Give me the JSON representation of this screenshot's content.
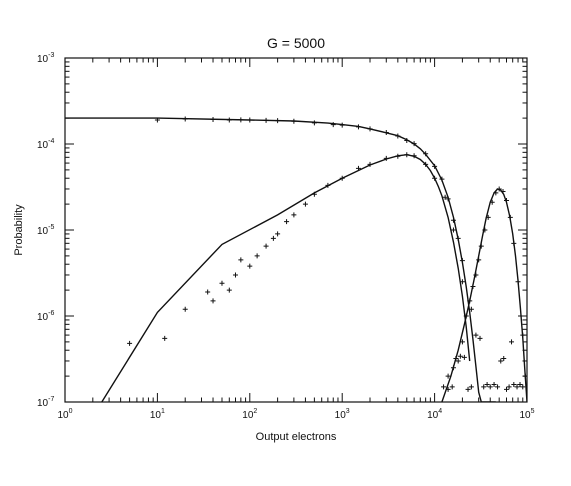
{
  "chart_data": {
    "type": "scatter",
    "title": "G = 5000",
    "xlabel": "Output electrons",
    "ylabel": "Probability",
    "xscale": "log",
    "yscale": "log",
    "xlim": [
      1,
      100000
    ],
    "ylim": [
      1e-07,
      0.001
    ],
    "x_ticks": [
      {
        "value": 1,
        "base": "10",
        "exp": "0"
      },
      {
        "value": 10,
        "base": "10",
        "exp": "1"
      },
      {
        "value": 100,
        "base": "10",
        "exp": "2"
      },
      {
        "value": 1000,
        "base": "10",
        "exp": "3"
      },
      {
        "value": 10000,
        "base": "10",
        "exp": "4"
      },
      {
        "value": 100000,
        "base": "10",
        "exp": "5"
      }
    ],
    "y_ticks": [
      {
        "value": 1e-07,
        "base": "10",
        "exp": "-7"
      },
      {
        "value": 1e-06,
        "base": "10",
        "exp": "-6"
      },
      {
        "value": 1e-05,
        "base": "10",
        "exp": "-5"
      },
      {
        "value": 0.0001,
        "base": "10",
        "exp": "-4"
      },
      {
        "value": 0.001,
        "base": "10",
        "exp": "-3"
      }
    ],
    "grid": false,
    "series": [
      {
        "style": "line",
        "x": [
          1,
          10,
          100,
          300,
          700,
          1000,
          1500,
          2000,
          3000,
          4000,
          5000,
          6000,
          7000,
          8000,
          10000,
          12000,
          14000,
          16000,
          18000,
          20000,
          22000,
          24000,
          26000,
          28000,
          30000,
          32000,
          34000,
          36000,
          38000,
          40000,
          42000,
          44000,
          46000
        ],
        "y": [
          0.0002,
          0.0002,
          0.00019,
          0.000185,
          0.000175,
          0.000168,
          0.00016,
          0.00015,
          0.000135,
          0.000125,
          0.000112,
          0.0001,
          8.8e-05,
          7.6e-05,
          5.6e-05,
          3.8e-05,
          2.4e-05,
          1.4e-05,
          7.8e-06,
          4.2e-06,
          2.2e-06,
          1.1e-06,
          5.4e-07,
          2.6e-07,
          1.3e-07,
          1e-07,
          1e-07,
          1e-07,
          1e-07,
          1e-07,
          1e-07,
          1e-07,
          1e-07
        ]
      },
      {
        "style": "line",
        "x": [
          2.5,
          10,
          50,
          200,
          500,
          1000,
          2000,
          3000,
          4000,
          5000,
          6000,
          7000,
          8000,
          9000,
          10000,
          11000,
          12000,
          14000,
          16000,
          18000,
          20000,
          22000,
          24000
        ],
        "y": [
          1e-07,
          1.1e-06,
          6.8e-06,
          1.5e-05,
          2.7e-05,
          4e-05,
          5.7e-05,
          6.7e-05,
          7.3e-05,
          7.5e-05,
          7.2e-05,
          6.6e-05,
          5.8e-05,
          4.9e-05,
          4e-05,
          3.2e-05,
          2.5e-05,
          1.4e-05,
          7.2e-06,
          3.6e-06,
          1.7e-06,
          7.5e-07,
          3e-07
        ]
      },
      {
        "style": "line",
        "x": [
          12000,
          15000,
          18000,
          21000,
          24000,
          27000,
          30000,
          33000,
          36000,
          40000,
          44000,
          48000,
          52000,
          56000,
          60000,
          65000,
          70000,
          75000,
          80000,
          85000,
          90000,
          95000,
          100000
        ],
        "y": [
          1e-07,
          2e-07,
          4e-07,
          8e-07,
          1.5e-06,
          2.8e-06,
          5e-06,
          8.5e-06,
          1.35e-05,
          2.1e-05,
          2.7e-05,
          3e-05,
          2.9e-05,
          2.6e-05,
          2.1e-05,
          1.45e-05,
          9e-06,
          5e-06,
          2.6e-06,
          1.2e-06,
          5.5e-07,
          2.3e-07,
          1e-07
        ]
      },
      {
        "style": "points",
        "x": [
          10,
          20,
          40,
          60,
          80,
          100,
          150,
          200,
          300,
          500,
          800,
          1000,
          1500,
          2000,
          3000,
          4000,
          5000,
          6000,
          8000,
          10000,
          12000,
          14000,
          16000,
          18000,
          20000,
          25000
        ],
        "y": [
          0.00019,
          0.000195,
          0.000193,
          0.00019,
          0.000191,
          0.00019,
          0.000188,
          0.000187,
          0.000184,
          0.000176,
          0.000168,
          0.000166,
          0.000158,
          0.00015,
          0.000136,
          0.000124,
          0.00011,
          0.000101,
          7.7e-05,
          5.5e-05,
          3.9e-05,
          2.3e-05,
          1.3e-05,
          8e-06,
          4.4e-06,
          1.2e-06
        ]
      },
      {
        "style": "points",
        "x": [
          5,
          12,
          20,
          35,
          40,
          50,
          60,
          70,
          80,
          100,
          120,
          150,
          180,
          200,
          250,
          300,
          400,
          500,
          700,
          1000,
          1500,
          2000,
          3000,
          4000,
          5000,
          6000,
          8000,
          10000,
          13000,
          16000,
          20000
        ],
        "y": [
          4.8e-07,
          5.5e-07,
          1.2e-06,
          1.9e-06,
          1.5e-06,
          2.4e-06,
          2e-06,
          3e-06,
          4.5e-06,
          3.8e-06,
          5e-06,
          6.5e-06,
          8e-06,
          9e-06,
          1.25e-05,
          1.5e-05,
          2e-05,
          2.6e-05,
          3.3e-05,
          4e-05,
          5.2e-05,
          5.8e-05,
          6.8e-05,
          7.2e-05,
          7.5e-05,
          7.3e-05,
          5.8e-05,
          4e-05,
          2.4e-05,
          1e-05,
          2.5e-06
        ]
      },
      {
        "style": "points",
        "x": [
          14000,
          16000,
          18000,
          20000,
          22000,
          24000,
          26000,
          28000,
          30000,
          32000,
          35000,
          38000,
          42000,
          46000,
          50000,
          55000,
          60000,
          66000,
          72000,
          80000,
          90000
        ],
        "y": [
          2e-07,
          2.5e-07,
          3e-07,
          5e-07,
          1e-06,
          1.5e-06,
          2.2e-06,
          3e-06,
          4.5e-06,
          6.5e-06,
          1e-05,
          1.4e-05,
          2.1e-05,
          2.7e-05,
          3e-05,
          2.8e-05,
          2.2e-05,
          1.4e-05,
          7e-06,
          2.5e-06,
          6e-07
        ]
      },
      {
        "style": "points",
        "x": [
          12500,
          14000,
          15500,
          17000,
          19000,
          21000,
          23000,
          25000,
          28000,
          31000,
          34000,
          37000,
          40000,
          44000,
          48000,
          52000,
          56000,
          60000,
          64000,
          68000,
          72000,
          78000,
          84000,
          90000,
          96000
        ],
        "y": [
          1.5e-07,
          1.4e-07,
          1.5e-07,
          3.2e-07,
          3.4e-07,
          3.3e-07,
          1.4e-07,
          1.5e-07,
          6e-07,
          5.5e-07,
          1.5e-07,
          1.6e-07,
          1.5e-07,
          1.6e-07,
          1.5e-07,
          3e-07,
          3.2e-07,
          1.4e-07,
          1.5e-07,
          5e-07,
          1.6e-07,
          1.5e-07,
          1.6e-07,
          1.5e-07,
          2e-07
        ]
      }
    ]
  }
}
